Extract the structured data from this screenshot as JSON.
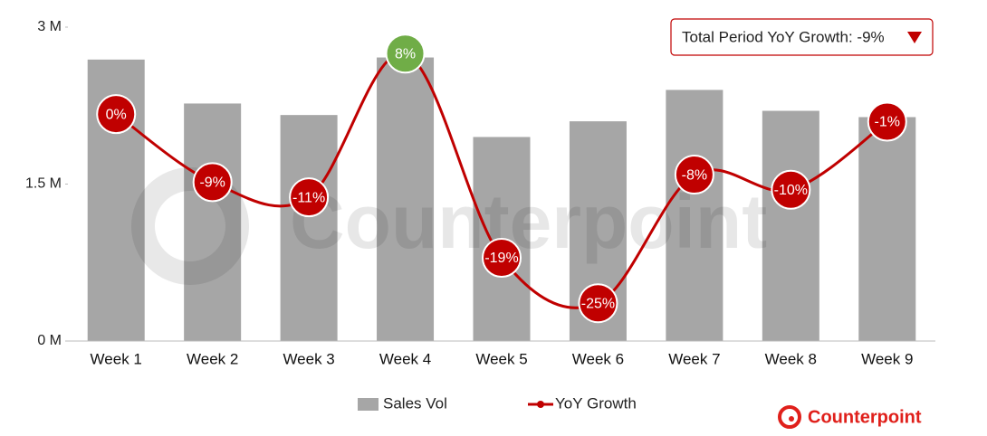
{
  "chart_data": {
    "type": "bar_line",
    "categories": [
      "Week 1",
      "Week 2",
      "Week 3",
      "Week 4",
      "Week 5",
      "Week 6",
      "Week 7",
      "Week 8",
      "Week 9"
    ],
    "series": [
      {
        "name": "Sales Vol",
        "type": "bar",
        "color": "#a6a6a6",
        "values": [
          2.69,
          2.27,
          2.16,
          2.71,
          1.95,
          2.1,
          2.4,
          2.2,
          2.14
        ]
      },
      {
        "name": "YoY Growth",
        "type": "line",
        "axis": "y2",
        "color": "#c00000",
        "positive_color": "#70ad47",
        "values": [
          0,
          -9,
          -11,
          8,
          -19,
          -25,
          -8,
          -10,
          -1
        ],
        "value_labels": [
          "0%",
          "-9%",
          "-11%",
          "8%",
          "-19%",
          "-25%",
          "-8%",
          "-10%",
          "-1%"
        ]
      }
    ],
    "ylim": [
      0,
      3
    ],
    "yticks": [
      {
        "value": 0,
        "label": "0 M"
      },
      {
        "value": 1.5,
        "label": "1.5 M"
      },
      {
        "value": 3,
        "label": "3 M"
      }
    ],
    "y2lim": [
      -30,
      11.5
    ],
    "annotation": "Total Period YoY Growth: -9%",
    "watermark": "Counterpoint",
    "logo": "Counterpoint",
    "legend": "bottom"
  }
}
